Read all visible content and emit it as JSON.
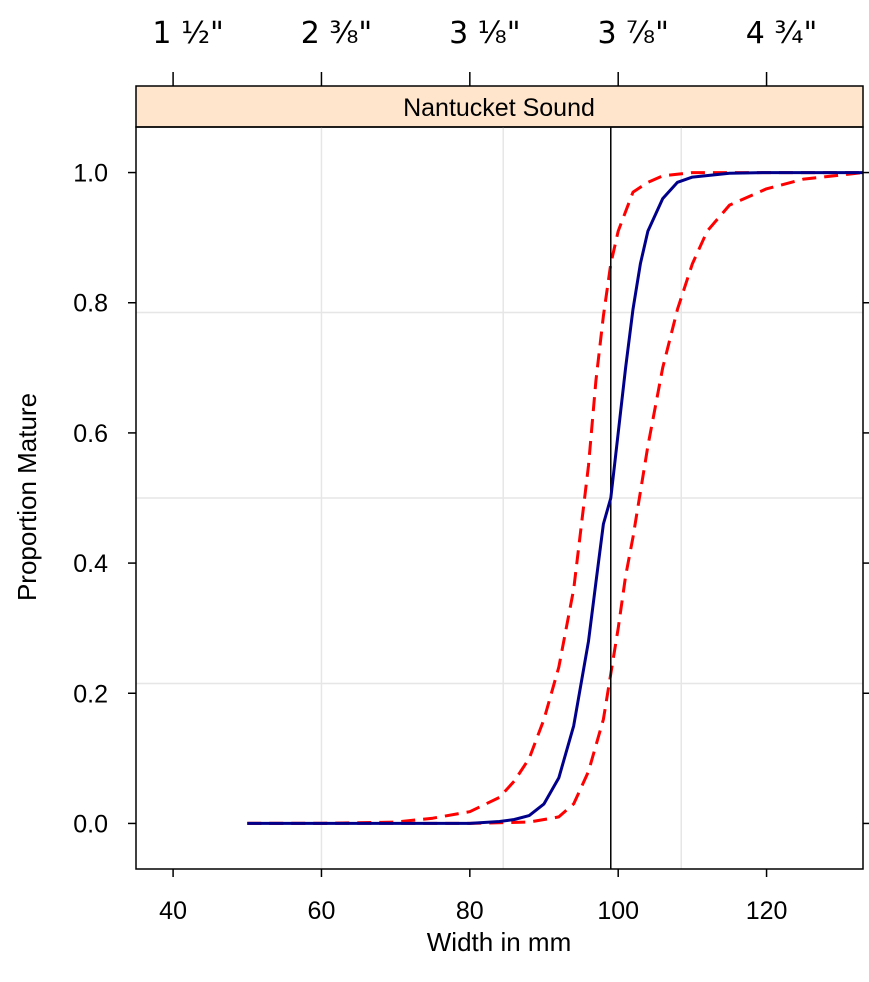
{
  "chart_data": {
    "type": "line",
    "panel_title": "Nantucket Sound",
    "xlabel": "Width in mm",
    "ylabel": "Proportion Mature",
    "xlim": [
      35,
      133
    ],
    "ylim": [
      -0.07,
      1.07
    ],
    "x_ticks": [
      {
        "value": 40,
        "label": "40"
      },
      {
        "value": 60,
        "label": "60"
      },
      {
        "value": 80,
        "label": "80"
      },
      {
        "value": 100,
        "label": "100"
      },
      {
        "value": 120,
        "label": "120"
      }
    ],
    "y_ticks": [
      {
        "value": 0.0,
        "label": "0.0"
      },
      {
        "value": 0.2,
        "label": "0.2"
      },
      {
        "value": 0.4,
        "label": "0.4"
      },
      {
        "value": 0.6,
        "label": "0.6"
      },
      {
        "value": 0.8,
        "label": "0.8"
      },
      {
        "value": 1.0,
        "label": "1.0"
      }
    ],
    "top_ticks": [
      {
        "value": 40,
        "label": "1 ½\""
      },
      {
        "value": 60,
        "label": "2 ⅜\""
      },
      {
        "value": 80,
        "label": "3 ⅛\""
      },
      {
        "value": 100,
        "label": "3 ⅞\""
      },
      {
        "value": 120,
        "label": "4 ¾\""
      }
    ],
    "grid": true,
    "grid_x": [
      60,
      84.5,
      108.5
    ],
    "grid_y": [
      0.215,
      0.5,
      0.785
    ],
    "reference_line_x": 99,
    "series": [
      {
        "style": "solid",
        "color": "#00008b",
        "points": [
          [
            50,
            0
          ],
          [
            60,
            0
          ],
          [
            70,
            0
          ],
          [
            80,
            0
          ],
          [
            84,
            0.003
          ],
          [
            86,
            0.006
          ],
          [
            88,
            0.012
          ],
          [
            90,
            0.03
          ],
          [
            92,
            0.07
          ],
          [
            94,
            0.15
          ],
          [
            96,
            0.28
          ],
          [
            97,
            0.37
          ],
          [
            98,
            0.46
          ],
          [
            99,
            0.5
          ],
          [
            100,
            0.6
          ],
          [
            101,
            0.7
          ],
          [
            102,
            0.79
          ],
          [
            103,
            0.86
          ],
          [
            104,
            0.91
          ],
          [
            106,
            0.96
          ],
          [
            108,
            0.985
          ],
          [
            110,
            0.993
          ],
          [
            115,
            0.999
          ],
          [
            120,
            1.0
          ],
          [
            133,
            1.0
          ]
        ]
      },
      {
        "style": "dashed",
        "color": "#ff0000",
        "points": [
          [
            50,
            0
          ],
          [
            60,
            0
          ],
          [
            70,
            0.002
          ],
          [
            75,
            0.008
          ],
          [
            80,
            0.018
          ],
          [
            84,
            0.04
          ],
          [
            86,
            0.065
          ],
          [
            88,
            0.1
          ],
          [
            90,
            0.16
          ],
          [
            92,
            0.24
          ],
          [
            94,
            0.36
          ],
          [
            96,
            0.55
          ],
          [
            97,
            0.68
          ],
          [
            98,
            0.78
          ],
          [
            99,
            0.86
          ],
          [
            100,
            0.91
          ],
          [
            102,
            0.97
          ],
          [
            104,
            0.985
          ],
          [
            106,
            0.995
          ],
          [
            110,
            1.0
          ],
          [
            133,
            1.0
          ]
        ]
      },
      {
        "style": "dashed",
        "color": "#ff0000",
        "points": [
          [
            50,
            0
          ],
          [
            80,
            0
          ],
          [
            88,
            0.002
          ],
          [
            92,
            0.01
          ],
          [
            94,
            0.03
          ],
          [
            96,
            0.08
          ],
          [
            98,
            0.16
          ],
          [
            99,
            0.23
          ],
          [
            100,
            0.3
          ],
          [
            101,
            0.38
          ],
          [
            102,
            0.44
          ],
          [
            104,
            0.58
          ],
          [
            106,
            0.7
          ],
          [
            108,
            0.79
          ],
          [
            110,
            0.86
          ],
          [
            112,
            0.91
          ],
          [
            115,
            0.95
          ],
          [
            120,
            0.975
          ],
          [
            125,
            0.99
          ],
          [
            133,
            1.0
          ]
        ]
      }
    ]
  }
}
